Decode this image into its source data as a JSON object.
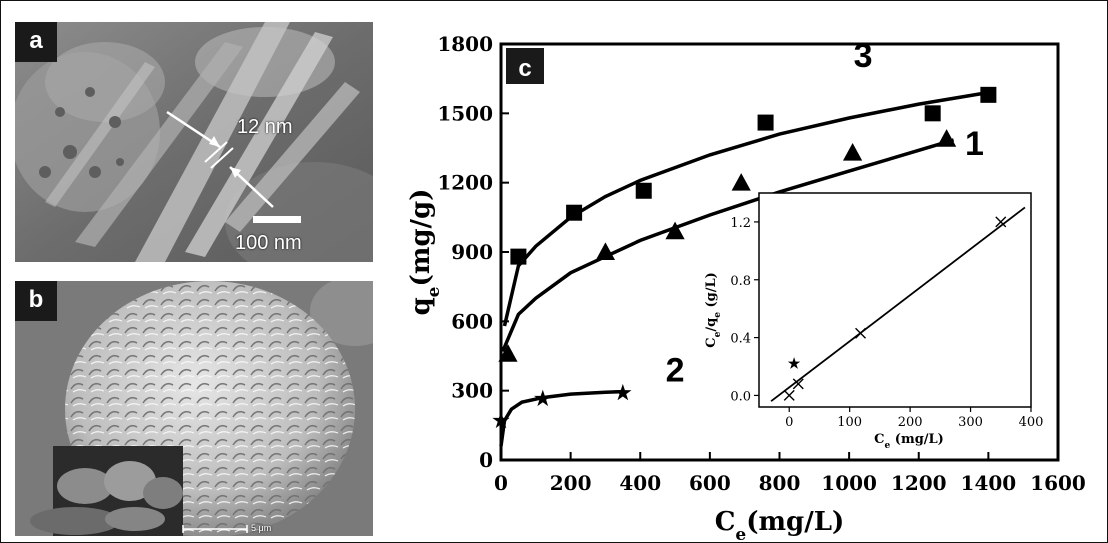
{
  "panels": {
    "a": {
      "label": "a",
      "thickness_label": "12 nm",
      "scale_label": "100 nm"
    },
    "b": {
      "label": "b",
      "scale_label": "5 μm"
    }
  },
  "chart_data": [
    {
      "panel_label": "c",
      "type": "scatter",
      "xlabel": "Ce(mg/L)",
      "ylabel": "qe(mg/g)",
      "xlim": [
        0,
        1600
      ],
      "ylim": [
        0,
        1800
      ],
      "x_ticks": [
        0,
        200,
        400,
        600,
        800,
        1000,
        1200,
        1400,
        1600
      ],
      "y_ticks": [
        0,
        300,
        600,
        900,
        1200,
        1500,
        1800
      ],
      "grid": false,
      "series": [
        {
          "name": "3",
          "marker": "square",
          "x": [
            50,
            210,
            410,
            760,
            1240,
            1400
          ],
          "y": [
            880,
            1070,
            1165,
            1460,
            1500,
            1580
          ],
          "fit_x": [
            10,
            50,
            100,
            200,
            300,
            400,
            600,
            800,
            1000,
            1200,
            1400
          ],
          "fit_y": [
            580,
            840,
            925,
            1050,
            1140,
            1210,
            1320,
            1410,
            1480,
            1540,
            1590
          ]
        },
        {
          "name": "1",
          "marker": "triangle",
          "x": [
            20,
            300,
            500,
            690,
            1010,
            1280
          ],
          "y": [
            460,
            900,
            990,
            1200,
            1330,
            1390
          ],
          "fit_x": [
            5,
            50,
            100,
            200,
            300,
            400,
            600,
            800,
            1000,
            1200,
            1300
          ],
          "fit_y": [
            470,
            630,
            700,
            810,
            880,
            950,
            1060,
            1160,
            1250,
            1340,
            1385
          ]
        },
        {
          "name": "2",
          "marker": "star",
          "x": [
            0,
            120,
            350
          ],
          "y": [
            170,
            265,
            290
          ],
          "fit_x": [
            0,
            10,
            30,
            60,
            120,
            200,
            300,
            350
          ],
          "fit_y": [
            60,
            170,
            220,
            250,
            270,
            285,
            293,
            296
          ]
        }
      ]
    },
    {
      "type": "scatter",
      "xlabel": "Ce (mg/L)",
      "ylabel": "Ce/qe (g/L)",
      "xlim": [
        -50,
        400
      ],
      "ylim": [
        -0.08,
        1.4
      ],
      "x_ticks": [
        0,
        100,
        200,
        300,
        400
      ],
      "y_ticks": [
        "0.0",
        "0.4",
        "0.8",
        "1.2"
      ],
      "series": [
        {
          "markers": [
            "x",
            "star",
            "x",
            "x",
            "x"
          ],
          "x": [
            0,
            8,
            15,
            118,
            350
          ],
          "y": [
            0.0,
            0.22,
            0.08,
            0.43,
            1.2
          ]
        }
      ],
      "fit_line": {
        "x": [
          -30,
          390
        ],
        "y": [
          -0.04,
          1.3
        ]
      }
    }
  ]
}
